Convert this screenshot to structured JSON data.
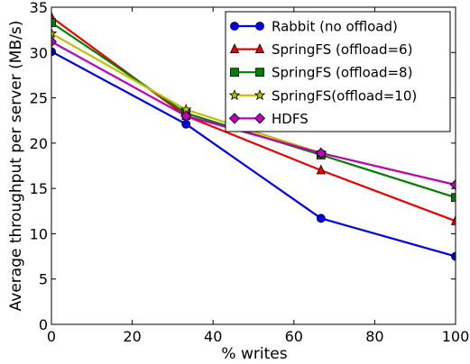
{
  "chart_data": {
    "type": "line",
    "xlabel": "% writes",
    "ylabel": "Average throughput per server (MB/s)",
    "xlim": [
      0,
      100
    ],
    "ylim": [
      0,
      35
    ],
    "xticks": [
      0,
      20,
      40,
      60,
      80,
      100
    ],
    "yticks": [
      0,
      5,
      10,
      15,
      20,
      25,
      30,
      35
    ],
    "grid": false,
    "legend_position": "top-right",
    "x": [
      0,
      33.3,
      66.7,
      100
    ],
    "series": [
      {
        "name": "Rabbit (no offload)",
        "color": "#0000ee",
        "marker": "circle",
        "values": [
          30.1,
          22.1,
          11.7,
          7.5
        ]
      },
      {
        "name": "SpringFS (offload=6)",
        "color": "#ee0000",
        "marker": "triangle",
        "values": [
          33.9,
          23.0,
          17.0,
          11.4
        ]
      },
      {
        "name": "SpringFS (offload=8)",
        "color": "#008000",
        "marker": "square",
        "values": [
          33.3,
          23.3,
          18.7,
          14.0
        ]
      },
      {
        "name": "SpringFS(offload=10)",
        "color": "#bfbf00",
        "marker": "star",
        "values": [
          32.1,
          23.7,
          18.9,
          15.4
        ]
      },
      {
        "name": "HDFS",
        "color": "#bf00bf",
        "marker": "diamond",
        "values": [
          31.2,
          23.0,
          18.9,
          15.4
        ]
      }
    ]
  }
}
